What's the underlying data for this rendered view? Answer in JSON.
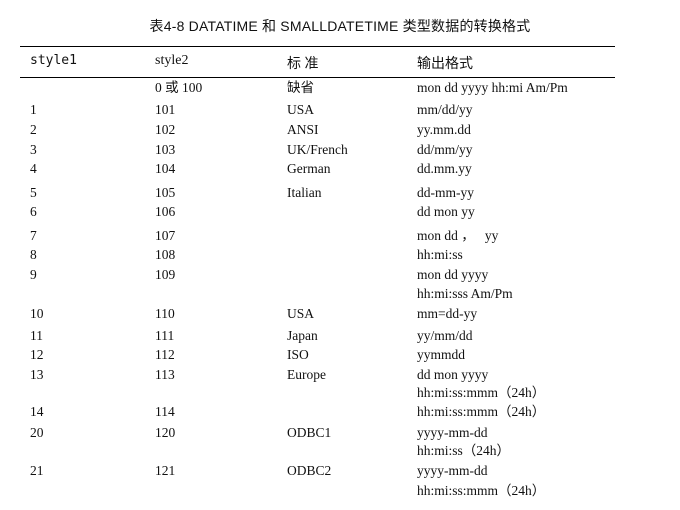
{
  "title": "表4-8  DATATIME 和 SMALLDATETIME 类型数据的转换格式",
  "headers": [
    "style1",
    "style2",
    "标 准",
    "输出格式"
  ],
  "rows": [
    {
      "style1": "",
      "style2": "0 或 100",
      "standard": "缺省",
      "output": [
        "mon dd yyyy hh:mi Am/Pm"
      ]
    },
    {
      "style1": "1",
      "style2": "101",
      "standard": "USA",
      "output": [
        "mm/dd/yy"
      ]
    },
    {
      "style1": "2",
      "style2": "102",
      "standard": "ANSI",
      "output": [
        "yy.mm.dd"
      ]
    },
    {
      "style1": "3",
      "style2": "103",
      "standard": "UK/French",
      "output": [
        "dd/mm/yy"
      ]
    },
    {
      "style1": "4",
      "style2": "104",
      "standard": "German",
      "output": [
        "dd.mm.yy"
      ]
    },
    {
      "style1": "5",
      "style2": "105",
      "standard": "Italian",
      "output": [
        "dd-mm-yy"
      ]
    },
    {
      "style1": "6",
      "style2": "106",
      "standard": "",
      "output": [
        "dd mon yy"
      ]
    },
    {
      "style1": "7",
      "style2": "107",
      "standard": "",
      "output": [
        "mon dd ，   yy"
      ]
    },
    {
      "style1": "8",
      "style2": "108",
      "standard": "",
      "output": [
        "hh:mi:ss"
      ]
    },
    {
      "style1": "9",
      "style2": "109",
      "standard": "",
      "output": [
        "mon dd yyyy",
        "hh:mi:sss Am/Pm"
      ]
    },
    {
      "style1": "10",
      "style2": "110",
      "standard": "USA",
      "output": [
        "mm=dd-yy"
      ]
    },
    {
      "style1": "11",
      "style2": "111",
      "standard": "Japan",
      "output": [
        "yy/mm/dd"
      ]
    },
    {
      "style1": "12",
      "style2": "112",
      "standard": "ISO",
      "output": [
        "yymmdd"
      ]
    },
    {
      "style1": "13",
      "style2": "113",
      "standard": "Europe",
      "output": [
        "dd mon yyyy",
        "hh:mi:ss:mmm（24h）"
      ]
    },
    {
      "style1": "14",
      "style2": "114",
      "standard": "",
      "output": [
        "hh:mi:ss:mmm（24h）"
      ]
    },
    {
      "style1": "20",
      "style2": "120",
      "standard": "ODBC1",
      "output": [
        "yyyy-mm-dd",
        "hh:mi:ss（24h）"
      ]
    },
    {
      "style1": "21",
      "style2": "121",
      "standard": "ODBC2",
      "output": [
        "yyyy-mm-dd",
        "hh:mi:ss:mmm（24h）"
      ]
    }
  ]
}
